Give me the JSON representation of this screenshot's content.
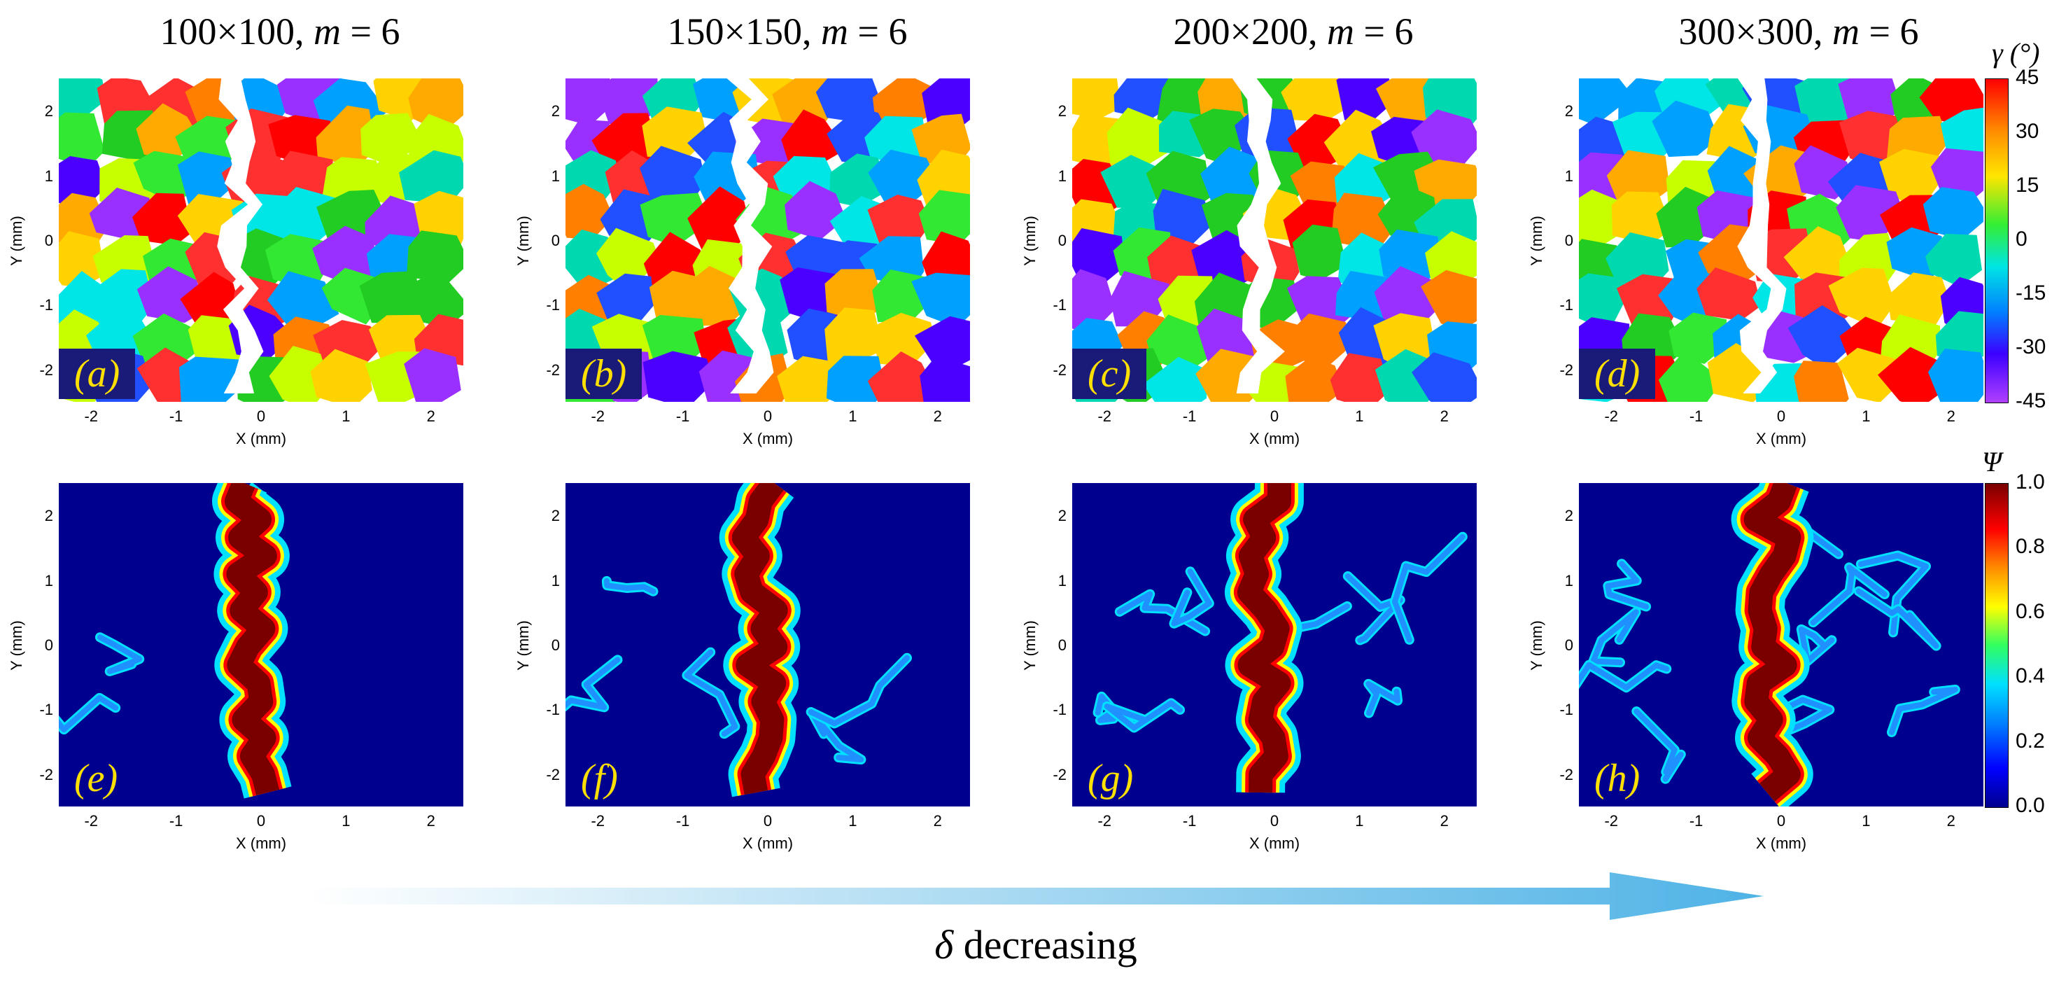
{
  "columns": [
    {
      "size": "100×100",
      "m_label": "m",
      "m_value": "= 6",
      "top_label": "(a)",
      "bottom_label": "(e)"
    },
    {
      "size": "150×150",
      "m_label": "m",
      "m_value": "= 6",
      "top_label": "(b)",
      "bottom_label": "(f)"
    },
    {
      "size": "200×200",
      "m_label": "m",
      "m_value": "= 6",
      "top_label": "(c)",
      "bottom_label": "(g)"
    },
    {
      "size": "300×300",
      "m_label": "m",
      "m_value": "= 6",
      "top_label": "(d)",
      "bottom_label": "(h)"
    }
  ],
  "axes": {
    "xlabel": "X (mm)",
    "ylabel": "Y (mm)",
    "xticks": [
      "-2",
      "-1",
      "0",
      "1",
      "2"
    ],
    "yticks": [
      "2",
      "1",
      "0",
      "-1",
      "-2"
    ]
  },
  "colorbar_gamma": {
    "title": "γ (°)",
    "ticks": [
      "45",
      "30",
      "15",
      "0",
      "-15",
      "-30",
      "-45"
    ]
  },
  "colorbar_psi": {
    "title": "Ψ",
    "ticks": [
      "1.0",
      "0.8",
      "0.6",
      "0.4",
      "0.2",
      "0.0"
    ]
  },
  "arrow": {
    "symbol": "δ",
    "text": "decreasing"
  },
  "colors": {
    "psi_background": "#00008f",
    "crack_core": "#7a0000",
    "arrow": "#5ab8e8",
    "label_box": "#1a1a78",
    "label_text": "#ffe000"
  }
}
